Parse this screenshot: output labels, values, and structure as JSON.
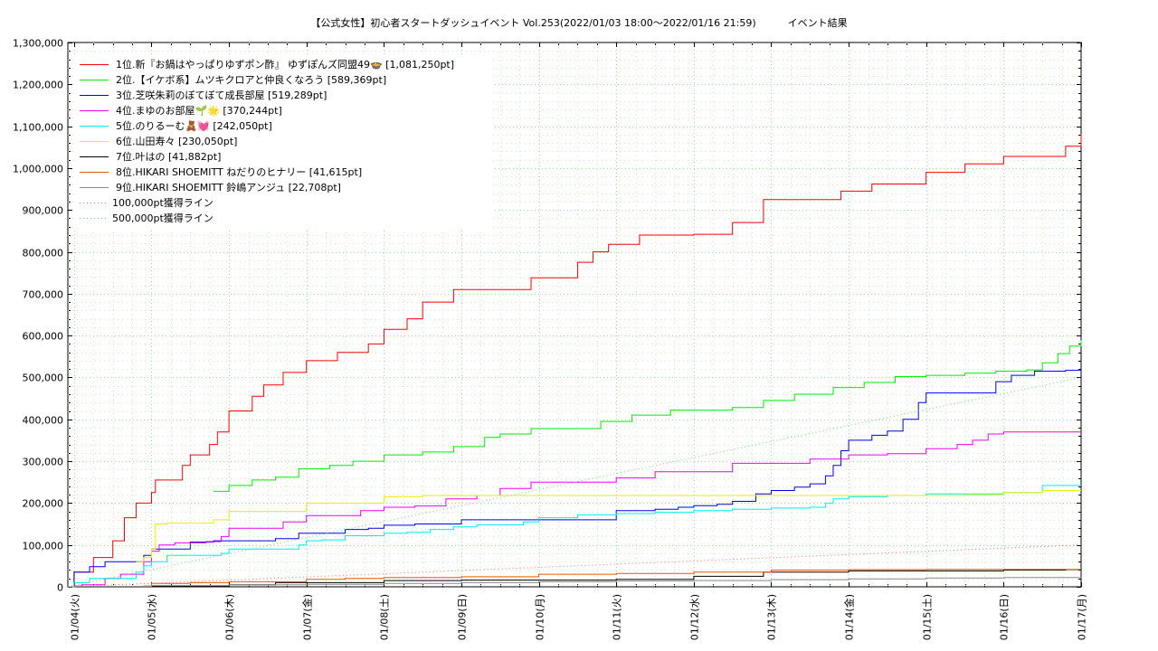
{
  "chart_data": {
    "type": "line",
    "title": "【公式女性】初心者スタートダッシュイベント Vol.253(2022/01/03 18:00～2022/01/16 21:59)",
    "subtitle": "イベント結果",
    "ylim": [
      0,
      1300000
    ],
    "y_ticks": [
      "0",
      "100,000",
      "200,000",
      "300,000",
      "400,000",
      "500,000",
      "600,000",
      "700,000",
      "800,000",
      "900,000",
      "1,000,000",
      "1,100,000",
      "1,200,000",
      "1,300,000"
    ],
    "x_range": [
      -0.08,
      13.0
    ],
    "x_ticks": [
      "01/04(火)",
      "01/05(水)",
      "01/06(木)",
      "01/07(金)",
      "01/08(土)",
      "01/09(日)",
      "01/10(月)",
      "01/11(火)",
      "01/12(水)",
      "01/13(木)",
      "01/14(金)",
      "01/15(土)",
      "01/16(日)",
      "01/17(月)"
    ],
    "grid": true,
    "legend_position": "top-left",
    "series": [
      {
        "name": "1位.新『お鍋はやっぱりゆずポン酢』 ゆずぽんズ同盟49🍲 [1,081,250pt]",
        "color": "#ff0000",
        "style": "solid",
        "x": [
          -0.08,
          0.0,
          0.25,
          0.3,
          0.5,
          0.55,
          0.65,
          0.7,
          0.8,
          0.85,
          1.0,
          1.05,
          1.25,
          1.4,
          1.5,
          1.55,
          1.75,
          1.85,
          1.9,
          2.0,
          2.3,
          2.45,
          2.7,
          3.0,
          3.4,
          3.8,
          4.0,
          4.3,
          4.5,
          4.9,
          5.3,
          5.9,
          6.5,
          6.7,
          6.9,
          7.3,
          8.0,
          8.5,
          8.9,
          9.5,
          9.9,
          10.3,
          11.0,
          11.5,
          12.0,
          12.3,
          12.8,
          13.0
        ],
        "y": [
          0,
          35000,
          70000,
          70000,
          110000,
          110000,
          165000,
          165000,
          200000,
          200000,
          225000,
          255000,
          255000,
          290000,
          315000,
          315000,
          340000,
          370000,
          370000,
          420000,
          455000,
          482000,
          512000,
          540000,
          560000,
          580000,
          615000,
          640000,
          680000,
          710000,
          710000,
          738000,
          775000,
          800000,
          818000,
          840000,
          842000,
          870000,
          925000,
          925000,
          945000,
          962000,
          990000,
          1010000,
          1028000,
          1028000,
          1052000,
          1081000
        ]
      },
      {
        "name": "2位.【イケボ系】ムツキクロアと仲良くなろう [589,369pt]",
        "color": "#00ee00",
        "style": "solid",
        "x": [
          1.8,
          1.9,
          2.0,
          2.3,
          2.6,
          2.9,
          3.3,
          3.6,
          4.0,
          4.5,
          4.9,
          5.3,
          5.5,
          5.9,
          6.8,
          7.2,
          7.7,
          8.5,
          8.9,
          9.3,
          9.8,
          10.2,
          10.6,
          11.0,
          11.5,
          11.9,
          12.3,
          12.5,
          12.7,
          12.85,
          13.0
        ],
        "y": [
          228000,
          228000,
          242000,
          255000,
          262000,
          282000,
          290000,
          300000,
          315000,
          322000,
          335000,
          357000,
          365000,
          378000,
          395000,
          410000,
          422000,
          428000,
          445000,
          460000,
          476000,
          488000,
          502000,
          505000,
          510000,
          515000,
          518000,
          535000,
          557000,
          575000,
          589000
        ]
      },
      {
        "name": "3位.芝咲朱莉のぼてぼて成長部屋 [519,289pt]",
        "color": "#0000ee",
        "style": "solid",
        "x": [
          -0.08,
          0.0,
          0.1,
          0.2,
          0.4,
          0.8,
          0.9,
          1.0,
          1.5,
          1.8,
          2.0,
          2.6,
          2.9,
          3.2,
          3.5,
          3.8,
          4.0,
          4.4,
          5.0,
          5.5,
          6.0,
          6.5,
          7.0,
          7.5,
          7.8,
          8.0,
          8.3,
          8.5,
          8.8,
          9.0,
          9.3,
          9.5,
          9.7,
          9.8,
          9.9,
          10.0,
          10.3,
          10.5,
          10.7,
          10.9,
          11.0,
          11.3,
          11.7,
          11.9,
          12.1,
          12.4,
          12.8,
          13.0
        ],
        "y": [
          0,
          35000,
          35000,
          48000,
          60000,
          60000,
          75000,
          90000,
          107000,
          110000,
          110000,
          115000,
          128000,
          128000,
          137000,
          140000,
          147000,
          150000,
          160000,
          160000,
          160000,
          160000,
          182000,
          185000,
          190000,
          194000,
          197000,
          204000,
          222000,
          230000,
          238000,
          246000,
          265000,
          290000,
          325000,
          350000,
          362000,
          372000,
          400000,
          440000,
          463000,
          463000,
          463000,
          490000,
          505000,
          515000,
          517000,
          519000
        ]
      },
      {
        "name": "4位.まゆのお部屋🌱🌟 [370,244pt]",
        "color": "#ee00ee",
        "style": "solid",
        "x": [
          -0.08,
          0.0,
          0.1,
          0.3,
          0.4,
          0.6,
          0.9,
          1.0,
          1.1,
          1.3,
          1.5,
          1.7,
          1.9,
          2.0,
          2.3,
          2.7,
          3.0,
          3.3,
          3.7,
          4.0,
          4.4,
          4.8,
          5.2,
          5.5,
          5.9,
          6.5,
          7.0,
          7.5,
          8.0,
          8.5,
          9.0,
          9.5,
          10.0,
          10.5,
          11.0,
          11.4,
          11.6,
          11.8,
          12.0,
          12.5,
          13.0
        ],
        "y": [
          0,
          2000,
          5000,
          5000,
          20000,
          30000,
          60000,
          85000,
          100000,
          105000,
          105000,
          108000,
          120000,
          140000,
          140000,
          155000,
          170000,
          170000,
          182000,
          190000,
          193000,
          210000,
          218000,
          235000,
          250000,
          250000,
          260000,
          275000,
          275000,
          295000,
          295000,
          305000,
          315000,
          318000,
          330000,
          340000,
          350000,
          365000,
          370000,
          370000,
          370000
        ]
      },
      {
        "name": "5位.のりるーむ🧸💓 [242,050pt]",
        "color": "#00eeee",
        "style": "solid",
        "x": [
          -0.08,
          0.0,
          0.1,
          0.2,
          0.5,
          0.8,
          0.9,
          1.0,
          1.2,
          1.5,
          1.9,
          2.0,
          2.3,
          2.9,
          3.0,
          3.2,
          3.5,
          3.8,
          4.0,
          4.3,
          4.6,
          4.9,
          5.2,
          5.5,
          5.8,
          6.0,
          6.5,
          7.0,
          7.5,
          8.0,
          8.5,
          9.0,
          9.5,
          9.7,
          9.8,
          10.0,
          10.5,
          11.0,
          11.5,
          12.0,
          12.5,
          13.0
        ],
        "y": [
          0,
          10000,
          10000,
          20000,
          20000,
          35000,
          50000,
          60000,
          75000,
          75000,
          80000,
          90000,
          90000,
          100000,
          110000,
          112000,
          122000,
          122000,
          128000,
          130000,
          137000,
          143000,
          148000,
          148000,
          155000,
          165000,
          172000,
          175000,
          178000,
          182000,
          185000,
          188000,
          190000,
          200000,
          210000,
          215000,
          218000,
          222000,
          222000,
          225000,
          242000,
          242000
        ]
      },
      {
        "name": "6位.山田寿々 [230,050pt]",
        "color": "#eeee00",
        "style": "solid",
        "x": [
          0.8,
          0.9,
          1.0,
          1.05,
          1.2,
          1.5,
          1.8,
          1.9,
          2.0,
          2.5,
          3.0,
          3.5,
          4.0,
          4.5,
          5.0,
          6.0,
          7.0,
          8.0,
          9.0,
          10.0,
          11.0,
          11.5,
          12.0,
          12.5,
          13.0
        ],
        "y": [
          60000,
          70000,
          90000,
          150000,
          152000,
          152000,
          160000,
          160000,
          180000,
          180000,
          200000,
          200000,
          215000,
          218000,
          218000,
          218000,
          218000,
          218000,
          218000,
          218000,
          218000,
          220000,
          225000,
          230000,
          230050
        ]
      },
      {
        "name": "7位.叶はの [41,882pt]",
        "color": "#000000",
        "style": "solid",
        "x": [
          0.8,
          1.0,
          2.0,
          2.6,
          3.0,
          4.0,
          4.5,
          5.0,
          6.0,
          7.0,
          8.0,
          8.9,
          9.5,
          10.0,
          11.0,
          12.0,
          12.8,
          13.0
        ],
        "y": [
          0,
          2000,
          5000,
          10000,
          10000,
          15000,
          15000,
          16000,
          16000,
          18000,
          25000,
          35000,
          35000,
          38000,
          38000,
          40000,
          41000,
          41882
        ]
      },
      {
        "name": "8位.HIKARI SHOEMITT ねだりのヒナリー [41,615pt]",
        "color": "#ee5500",
        "style": "solid",
        "x": [
          -0.08,
          0.0,
          0.9,
          1.0,
          1.5,
          2.0,
          3.0,
          3.5,
          4.0,
          5.0,
          6.0,
          7.0,
          8.0,
          9.0,
          10.0,
          11.0,
          12.0,
          13.0
        ],
        "y": [
          0,
          1000,
          2000,
          8000,
          10000,
          12000,
          18000,
          20000,
          22000,
          24000,
          30000,
          32000,
          35000,
          40000,
          41000,
          41500,
          41600,
          41615
        ]
      },
      {
        "name": "9位.HIKARI SHOEMITT 鈴嶋アンジュ [22,708pt]",
        "color": "#888888",
        "style": "solid",
        "x": [
          -0.08,
          0.0,
          1.0,
          2.0,
          3.0,
          4.0,
          5.0,
          6.0,
          7.0,
          8.0,
          9.0,
          10.0,
          11.0,
          12.0,
          13.0
        ],
        "y": [
          0,
          1000,
          3000,
          5000,
          6000,
          8000,
          10000,
          12000,
          14000,
          15000,
          17000,
          19000,
          21000,
          22000,
          22708
        ]
      },
      {
        "name": "100,000pt獲得ライン",
        "color": "#ff6666",
        "style": "dotted",
        "x": [
          -0.08,
          13.0
        ],
        "y": [
          0,
          100000
        ]
      },
      {
        "name": "500,000pt獲得ライン",
        "color": "#66dd66",
        "style": "dotted",
        "x": [
          -0.08,
          13.0
        ],
        "y": [
          0,
          500000
        ]
      }
    ]
  }
}
